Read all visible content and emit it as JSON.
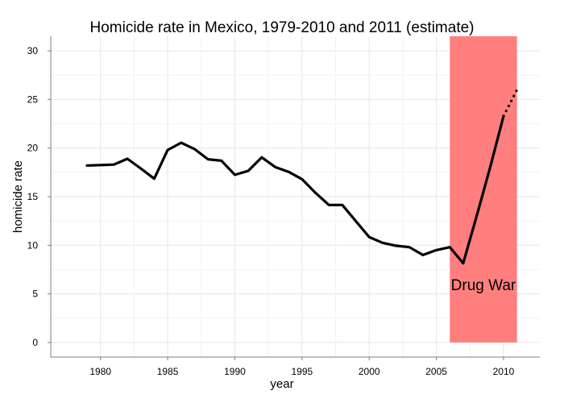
{
  "chart_data": {
    "type": "line",
    "title": "Homicide rate in Mexico, 1979-2010 and 2011 (estimate)",
    "xlabel": "year",
    "ylabel": "homicide rate",
    "xlim": [
      1976.3,
      2012.7
    ],
    "ylim": [
      -1.5,
      31.5
    ],
    "x_ticks": [
      1980,
      1985,
      1990,
      1995,
      2000,
      2005,
      2010
    ],
    "x_tick_labels": [
      "1980",
      "1985",
      "1990",
      "1995",
      "2000",
      "2005",
      "2010"
    ],
    "y_ticks": [
      0,
      5,
      10,
      15,
      20,
      25,
      30
    ],
    "y_tick_labels": [
      "0",
      "5",
      "10",
      "15",
      "20",
      "25",
      "30"
    ],
    "grid": true,
    "series": [
      {
        "name": "homicide rate",
        "style": "solid",
        "color": "#000000",
        "x": [
          1979,
          1980,
          1981,
          1982,
          1983,
          1984,
          1985,
          1986,
          1987,
          1988,
          1989,
          1990,
          1991,
          1992,
          1993,
          1994,
          1995,
          1996,
          1997,
          1998,
          1999,
          2000,
          2001,
          2002,
          2003,
          2004,
          2005,
          2006,
          2007,
          2008,
          2009,
          2010
        ],
        "values": [
          18.2,
          18.25,
          18.3,
          18.9,
          17.9,
          16.85,
          19.8,
          20.55,
          19.9,
          18.85,
          18.7,
          17.25,
          17.65,
          19.05,
          18.05,
          17.55,
          16.8,
          15.4,
          14.15,
          14.15,
          12.5,
          10.85,
          10.25,
          9.95,
          9.8,
          9.0,
          9.5,
          9.8,
          8.15,
          13.0,
          18.0,
          23.3
        ]
      },
      {
        "name": "2011 estimate",
        "style": "dotted",
        "color": "#000000",
        "x": [
          2010,
          2011
        ],
        "values": [
          23.3,
          26.0
        ]
      }
    ],
    "annotations": [
      {
        "type": "shaded_region",
        "label": "Drug War",
        "x_start": 2006,
        "x_end": 2011,
        "y_start": 0,
        "y_end": 31.5,
        "color": "#ff7f7f",
        "label_x": 2008.5,
        "label_y": 5.8
      }
    ]
  }
}
